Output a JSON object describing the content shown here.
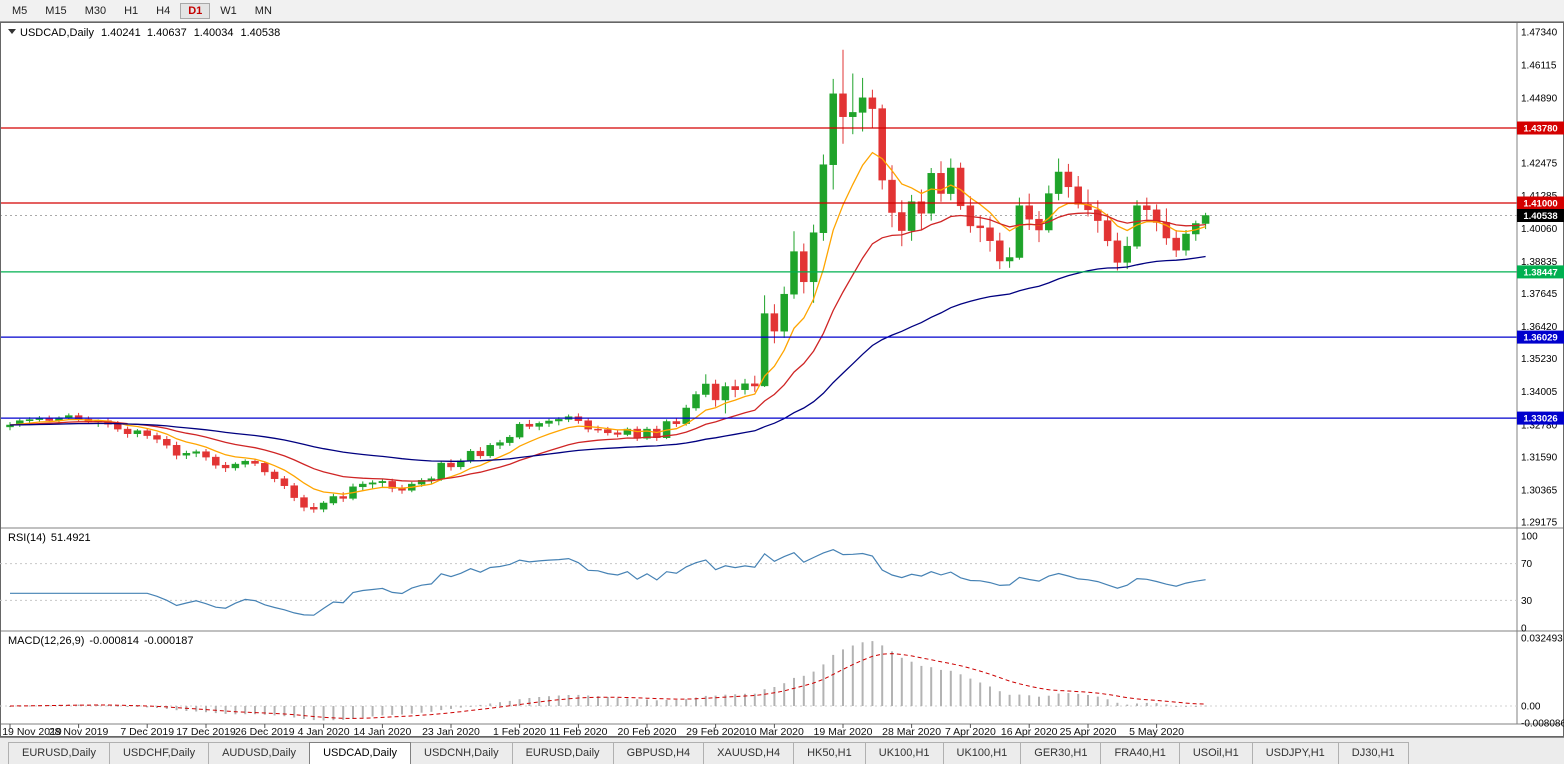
{
  "toolbar": {
    "timeframes": [
      {
        "label": "M5",
        "active": false
      },
      {
        "label": "M15",
        "active": false
      },
      {
        "label": "M30",
        "active": false
      },
      {
        "label": "H1",
        "active": false
      },
      {
        "label": "H4",
        "active": false
      },
      {
        "label": "D1",
        "active": true
      },
      {
        "label": "W1",
        "active": false
      },
      {
        "label": "MN",
        "active": false
      }
    ]
  },
  "chart": {
    "symbol": "USDCAD,Daily",
    "ohlc": {
      "open": "1.40241",
      "high": "1.40637",
      "low": "1.40034",
      "close": "1.40538"
    },
    "current_price": {
      "label": "1.40538",
      "value": 1.40538
    },
    "levels": [
      {
        "label": "1.43780",
        "value": 1.4378,
        "color": "#d40000"
      },
      {
        "label": "1.41000",
        "value": 1.41,
        "color": "#d40000"
      },
      {
        "label": "1.38447",
        "value": 1.38447,
        "color": "#00b050"
      },
      {
        "label": "1.36029",
        "value": 1.36029,
        "color": "#0000cd"
      },
      {
        "label": "1.33026",
        "value": 1.33026,
        "color": "#0000cd"
      }
    ],
    "y_ticks": [
      {
        "label": "1.47340",
        "value": 1.4734
      },
      {
        "label": "1.46115",
        "value": 1.46115
      },
      {
        "label": "1.44890",
        "value": 1.4489
      },
      {
        "label": "1.42475",
        "value": 1.42475
      },
      {
        "label": "1.41285",
        "value": 1.41285
      },
      {
        "label": "1.40060",
        "value": 1.4006
      },
      {
        "label": "1.38835",
        "value": 1.38835
      },
      {
        "label": "1.37645",
        "value": 1.37645
      },
      {
        "label": "1.36420",
        "value": 1.3642
      },
      {
        "label": "1.35230",
        "value": 1.3523
      },
      {
        "label": "1.34005",
        "value": 1.34005
      },
      {
        "label": "1.32780",
        "value": 1.3278
      },
      {
        "label": "1.31590",
        "value": 1.3159
      },
      {
        "label": "1.30365",
        "value": 1.30365
      },
      {
        "label": "1.29175",
        "value": 1.29175
      }
    ],
    "x_labels": [
      {
        "text": "19 Nov 2019",
        "i": 0
      },
      {
        "text": "28 Nov 2019",
        "i": 7
      },
      {
        "text": "7 Dec 2019",
        "i": 14
      },
      {
        "text": "17 Dec 2019",
        "i": 20
      },
      {
        "text": "26 Dec 2019",
        "i": 26
      },
      {
        "text": "4 Jan 2020",
        "i": 32
      },
      {
        "text": "14 Jan 2020",
        "i": 38
      },
      {
        "text": "23 Jan 2020",
        "i": 45
      },
      {
        "text": "1 Feb 2020",
        "i": 52
      },
      {
        "text": "11 Feb 2020",
        "i": 58
      },
      {
        "text": "20 Feb 2020",
        "i": 65
      },
      {
        "text": "29 Feb 2020",
        "i": 72
      },
      {
        "text": "10 Mar 2020",
        "i": 78
      },
      {
        "text": "19 Mar 2020",
        "i": 85
      },
      {
        "text": "28 Mar 2020",
        "i": 92
      },
      {
        "text": "7 Apr 2020",
        "i": 98
      },
      {
        "text": "16 Apr 2020",
        "i": 104
      },
      {
        "text": "25 Apr 2020",
        "i": 110
      },
      {
        "text": "5 May 2020",
        "i": 117
      }
    ]
  },
  "rsi": {
    "name": "RSI(14)",
    "value": "51.4921",
    "ticks": [
      {
        "label": "100",
        "v": 100
      },
      {
        "label": "70",
        "v": 70
      },
      {
        "label": "30",
        "v": 30
      },
      {
        "label": "0",
        "v": 0
      }
    ],
    "guides": [
      70,
      30
    ]
  },
  "macd": {
    "name": "MACD(12,26,9)",
    "main": "-0.000814",
    "signal": "-0.000187",
    "ticks": [
      {
        "label": "0.032493",
        "v": 0.032493
      },
      {
        "label": "0.00",
        "v": 0
      },
      {
        "label": "-0.008086",
        "v": -0.008086
      }
    ]
  },
  "colors": {
    "bull": "#1fa32a",
    "bear": "#e23434",
    "ma_fast": "#ffa500",
    "ma_mid": "#cf2525",
    "ma_slow": "#000080",
    "rsi": "#4682b4",
    "macd_hist": "#b3b3b3",
    "macd_signal": "#cc0000",
    "axis_line": "#808080",
    "current_price_badge": "#000000"
  },
  "chart_data": {
    "type": "candlestick",
    "symbol": "USDCAD",
    "timeframe": "Daily",
    "x_range": [
      "19 Nov 2019",
      "12 May 2020"
    ],
    "y_range": [
      1.29175,
      1.4734
    ],
    "ohlc_format": [
      "open",
      "high",
      "low",
      "close"
    ],
    "indicators": {
      "ma_ema_periods": [
        8,
        20,
        55
      ],
      "rsi_period": 14,
      "macd_params": [
        12,
        26,
        9
      ]
    },
    "candles": [
      [
        1.327,
        1.3288,
        1.3258,
        1.3277
      ],
      [
        1.3277,
        1.33,
        1.327,
        1.3293
      ],
      [
        1.3293,
        1.3306,
        1.3281,
        1.3297
      ],
      [
        1.3297,
        1.331,
        1.3287,
        1.3302
      ],
      [
        1.3302,
        1.3312,
        1.3288,
        1.3294
      ],
      [
        1.3294,
        1.3309,
        1.3282,
        1.3304
      ],
      [
        1.3304,
        1.332,
        1.3296,
        1.3312
      ],
      [
        1.3312,
        1.3322,
        1.3291,
        1.3299
      ],
      [
        1.3299,
        1.3309,
        1.3281,
        1.3287
      ],
      [
        1.3287,
        1.3298,
        1.327,
        1.3293
      ],
      [
        1.3293,
        1.3301,
        1.3268,
        1.328
      ],
      [
        1.328,
        1.3292,
        1.3252,
        1.3262
      ],
      [
        1.3262,
        1.3271,
        1.323,
        1.3245
      ],
      [
        1.3245,
        1.3262,
        1.3232,
        1.3256
      ],
      [
        1.3256,
        1.3265,
        1.3226,
        1.3238
      ],
      [
        1.3238,
        1.3249,
        1.321,
        1.3224
      ],
      [
        1.3224,
        1.3236,
        1.319,
        1.3202
      ],
      [
        1.3202,
        1.3215,
        1.315,
        1.3165
      ],
      [
        1.3165,
        1.3182,
        1.3151,
        1.3172
      ],
      [
        1.3172,
        1.3186,
        1.3158,
        1.3178
      ],
      [
        1.3178,
        1.3188,
        1.3145,
        1.3158
      ],
      [
        1.3158,
        1.3168,
        1.3115,
        1.3128
      ],
      [
        1.3128,
        1.314,
        1.3103,
        1.3118
      ],
      [
        1.3118,
        1.3139,
        1.3108,
        1.3132
      ],
      [
        1.3132,
        1.315,
        1.312,
        1.3143
      ],
      [
        1.3143,
        1.3152,
        1.3125,
        1.3135
      ],
      [
        1.3135,
        1.3142,
        1.309,
        1.3103
      ],
      [
        1.3103,
        1.3112,
        1.3065,
        1.3078
      ],
      [
        1.3078,
        1.3088,
        1.304,
        1.3052
      ],
      [
        1.3052,
        1.3062,
        1.2995,
        1.3008
      ],
      [
        1.3008,
        1.3018,
        1.2957,
        1.2972
      ],
      [
        1.2972,
        1.2988,
        1.2952,
        1.2965
      ],
      [
        1.2965,
        1.2995,
        1.2954,
        1.2988
      ],
      [
        1.2988,
        1.3022,
        1.298,
        1.3012
      ],
      [
        1.3012,
        1.3028,
        1.2992,
        1.3005
      ],
      [
        1.3005,
        1.306,
        1.2998,
        1.3048
      ],
      [
        1.3048,
        1.3068,
        1.3035,
        1.3058
      ],
      [
        1.3058,
        1.3072,
        1.3042,
        1.3063
      ],
      [
        1.3063,
        1.3075,
        1.3048,
        1.3068
      ],
      [
        1.3068,
        1.3078,
        1.3028,
        1.3042
      ],
      [
        1.3042,
        1.3055,
        1.3022,
        1.3035
      ],
      [
        1.3035,
        1.3066,
        1.3028,
        1.3058
      ],
      [
        1.3058,
        1.308,
        1.3048,
        1.3072
      ],
      [
        1.3072,
        1.3086,
        1.3058,
        1.3078
      ],
      [
        1.3078,
        1.3145,
        1.307,
        1.3136
      ],
      [
        1.3136,
        1.315,
        1.3108,
        1.3122
      ],
      [
        1.3122,
        1.3152,
        1.3112,
        1.3144
      ],
      [
        1.3144,
        1.3188,
        1.3136,
        1.318
      ],
      [
        1.318,
        1.3195,
        1.3152,
        1.3163
      ],
      [
        1.3163,
        1.321,
        1.3155,
        1.3202
      ],
      [
        1.3202,
        1.3222,
        1.3188,
        1.3212
      ],
      [
        1.3212,
        1.324,
        1.32,
        1.3232
      ],
      [
        1.3232,
        1.3288,
        1.3225,
        1.328
      ],
      [
        1.328,
        1.3296,
        1.3262,
        1.3272
      ],
      [
        1.3272,
        1.329,
        1.3258,
        1.3283
      ],
      [
        1.3283,
        1.33,
        1.327,
        1.3292
      ],
      [
        1.3292,
        1.3306,
        1.3276,
        1.3298
      ],
      [
        1.3298,
        1.3316,
        1.3288,
        1.3308
      ],
      [
        1.3308,
        1.332,
        1.3282,
        1.3293
      ],
      [
        1.3293,
        1.3302,
        1.325,
        1.3262
      ],
      [
        1.3262,
        1.3275,
        1.3248,
        1.326
      ],
      [
        1.326,
        1.327,
        1.3238,
        1.3248
      ],
      [
        1.3248,
        1.326,
        1.3232,
        1.3242
      ],
      [
        1.3242,
        1.3268,
        1.3236,
        1.3262
      ],
      [
        1.3262,
        1.3272,
        1.3218,
        1.3228
      ],
      [
        1.3228,
        1.327,
        1.3222,
        1.3262
      ],
      [
        1.3262,
        1.3274,
        1.3218,
        1.323
      ],
      [
        1.323,
        1.3298,
        1.3225,
        1.329
      ],
      [
        1.329,
        1.3305,
        1.327,
        1.3282
      ],
      [
        1.3282,
        1.3352,
        1.3275,
        1.334
      ],
      [
        1.334,
        1.3402,
        1.333,
        1.339
      ],
      [
        1.339,
        1.3465,
        1.338,
        1.3429
      ],
      [
        1.3429,
        1.3445,
        1.3345,
        1.337
      ],
      [
        1.337,
        1.3435,
        1.332,
        1.342
      ],
      [
        1.342,
        1.3445,
        1.338,
        1.3408
      ],
      [
        1.3408,
        1.3448,
        1.339,
        1.343
      ],
      [
        1.343,
        1.346,
        1.34,
        1.3422
      ],
      [
        1.3422,
        1.3758,
        1.3418,
        1.369
      ],
      [
        1.369,
        1.3725,
        1.358,
        1.3625
      ],
      [
        1.3625,
        1.379,
        1.36,
        1.3762
      ],
      [
        1.3762,
        1.3995,
        1.3745,
        1.392
      ],
      [
        1.392,
        1.395,
        1.3765,
        1.3808
      ],
      [
        1.3808,
        1.402,
        1.373,
        1.399
      ],
      [
        1.399,
        1.428,
        1.396,
        1.4242
      ],
      [
        1.4242,
        1.456,
        1.415,
        1.4505
      ],
      [
        1.4505,
        1.4668,
        1.432,
        1.442
      ],
      [
        1.442,
        1.458,
        1.4355,
        1.4436
      ],
      [
        1.4436,
        1.4564,
        1.4365,
        1.449
      ],
      [
        1.449,
        1.452,
        1.438,
        1.445
      ],
      [
        1.445,
        1.4465,
        1.415,
        1.4185
      ],
      [
        1.4185,
        1.424,
        1.401,
        1.4065
      ],
      [
        1.4065,
        1.411,
        1.394,
        1.3998
      ],
      [
        1.3998,
        1.413,
        1.396,
        1.4105
      ],
      [
        1.4105,
        1.415,
        1.4,
        1.4062
      ],
      [
        1.4062,
        1.423,
        1.4035,
        1.421
      ],
      [
        1.421,
        1.4255,
        1.4105,
        1.4135
      ],
      [
        1.4135,
        1.4265,
        1.411,
        1.423
      ],
      [
        1.423,
        1.425,
        1.4075,
        1.409
      ],
      [
        1.409,
        1.4125,
        1.399,
        1.4015
      ],
      [
        1.4015,
        1.4055,
        1.3955,
        1.4008
      ],
      [
        1.4008,
        1.405,
        1.392,
        1.396
      ],
      [
        1.396,
        1.399,
        1.3855,
        1.3885
      ],
      [
        1.3885,
        1.3935,
        1.386,
        1.3898
      ],
      [
        1.3898,
        1.412,
        1.389,
        1.409
      ],
      [
        1.409,
        1.4135,
        1.4,
        1.404
      ],
      [
        1.404,
        1.407,
        1.3955,
        1.4
      ],
      [
        1.4,
        1.4165,
        1.399,
        1.4135
      ],
      [
        1.4135,
        1.4265,
        1.411,
        1.4215
      ],
      [
        1.4215,
        1.4245,
        1.412,
        1.416
      ],
      [
        1.416,
        1.42,
        1.408,
        1.4095
      ],
      [
        1.4095,
        1.415,
        1.405,
        1.4075
      ],
      [
        1.4075,
        1.411,
        1.399,
        1.4035
      ],
      [
        1.4035,
        1.406,
        1.394,
        1.396
      ],
      [
        1.396,
        1.399,
        1.385,
        1.388
      ],
      [
        1.388,
        1.3975,
        1.3855,
        1.394
      ],
      [
        1.394,
        1.411,
        1.393,
        1.409
      ],
      [
        1.409,
        1.412,
        1.4038,
        1.4075
      ],
      [
        1.4075,
        1.4095,
        1.3995,
        1.4028
      ],
      [
        1.4028,
        1.408,
        1.3945,
        1.397
      ],
      [
        1.397,
        1.4,
        1.39,
        1.3925
      ],
      [
        1.3925,
        1.4,
        1.3905,
        1.3985
      ],
      [
        1.3985,
        1.4035,
        1.396,
        1.4024
      ],
      [
        1.40241,
        1.40637,
        1.40034,
        1.40538
      ]
    ]
  },
  "tabs": [
    {
      "label": "EURUSD,Daily",
      "active": false
    },
    {
      "label": "USDCHF,Daily",
      "active": false
    },
    {
      "label": "AUDUSD,Daily",
      "active": false
    },
    {
      "label": "USDCAD,Daily",
      "active": true
    },
    {
      "label": "USDCNH,Daily",
      "active": false
    },
    {
      "label": "EURUSD,Daily",
      "active": false
    },
    {
      "label": "GBPUSD,H4",
      "active": false
    },
    {
      "label": "XAUUSD,H4",
      "active": false
    },
    {
      "label": "HK50,H1",
      "active": false
    },
    {
      "label": "UK100,H1",
      "active": false
    },
    {
      "label": "UK100,H1",
      "active": false
    },
    {
      "label": "GER30,H1",
      "active": false
    },
    {
      "label": "FRA40,H1",
      "active": false
    },
    {
      "label": "USOil,H1",
      "active": false
    },
    {
      "label": "USDJPY,H1",
      "active": false
    },
    {
      "label": "DJ30,H1",
      "active": false
    }
  ]
}
